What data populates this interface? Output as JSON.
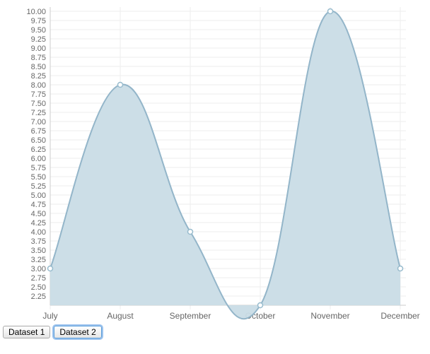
{
  "chart_data": {
    "type": "line",
    "categories": [
      "July",
      "August",
      "September",
      "October",
      "November",
      "December"
    ],
    "series": [
      {
        "values": [
          3,
          8,
          4,
          2,
          10,
          3
        ]
      }
    ],
    "ylim": [
      2,
      10
    ],
    "y_ticks": [
      "10.00",
      "9.75",
      "9.50",
      "9.25",
      "9.00",
      "8.75",
      "8.50",
      "8.25",
      "8.00",
      "7.75",
      "7.50",
      "7.25",
      "7.00",
      "6.75",
      "6.50",
      "6.25",
      "6.00",
      "5.75",
      "5.50",
      "5.25",
      "5.00",
      "4.75",
      "4.50",
      "4.25",
      "4.00",
      "3.75",
      "3.50",
      "3.25",
      "3.00",
      "2.75",
      "2.50",
      "2.25"
    ],
    "fill": true,
    "curve": "smooth",
    "grid": true,
    "colors": {
      "line": "#93b5c9",
      "fill": "#c9dce6",
      "point_fill": "#97bbcd",
      "point_stroke": "#ffffff",
      "grid": "#eeeeee"
    }
  },
  "controls": {
    "dataset1_label": "Dataset 1",
    "dataset2_label": "Dataset 2"
  }
}
